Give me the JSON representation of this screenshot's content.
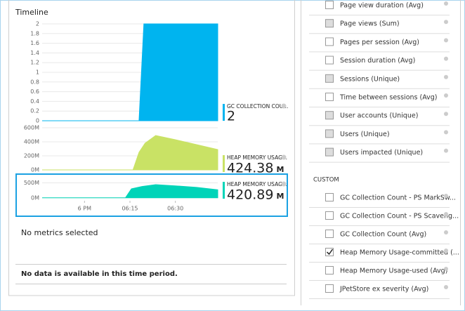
{
  "timeline": {
    "title": "Timeline",
    "empty_message": "No metrics selected",
    "no_data_message": "No data is available in this time period."
  },
  "chart_data": [
    {
      "type": "area",
      "series": [
        {
          "name": "GC COLLECTION COU...",
          "color": "#00b4ef",
          "values": [
            0,
            0,
            2,
            2
          ]
        }
      ],
      "x": [
        -14,
        18,
        19.6,
        44
      ],
      "xlim": [
        -14,
        44
      ],
      "ylim": [
        0,
        2
      ],
      "yticks": [
        0,
        0.2,
        0.4,
        0.6,
        0.8,
        1,
        1.2,
        1.4,
        1.6,
        1.8,
        2
      ],
      "grid": true,
      "current_value": 2
    },
    {
      "type": "area",
      "series": [
        {
          "name": "HEAP MEMORY USAG...",
          "color": "#c9e265",
          "values": [
            0,
            0,
            250,
            380,
            490,
            430,
            360,
            290
          ]
        }
      ],
      "x": [
        -14,
        16,
        18,
        20,
        23.5,
        30,
        37,
        44
      ],
      "xlim": [
        -14,
        44
      ],
      "ylim": [
        0,
        600
      ],
      "yticks": [
        {
          "value": 0,
          "label": "0M"
        },
        {
          "value": 200,
          "label": "200M"
        },
        {
          "value": 400,
          "label": "400M"
        },
        {
          "value": 600,
          "label": "600M"
        }
      ],
      "grid": true,
      "current_value": 424.38,
      "unit": "M"
    },
    {
      "type": "area",
      "series": [
        {
          "name": "HEAP MEMORY USAG...",
          "color": "#00d4b8",
          "values": [
            0,
            0,
            300,
            380,
            440,
            400,
            350,
            270
          ]
        }
      ],
      "x": [
        -14,
        13.5,
        15.5,
        19,
        23.5,
        30,
        37,
        44
      ],
      "xlim": [
        -14,
        44
      ],
      "ylim": [
        -100,
        700
      ],
      "yticks": [
        {
          "value": 0,
          "label": "0M"
        },
        {
          "value": 500,
          "label": "500M"
        }
      ],
      "xticks": [
        {
          "value": 0,
          "label": "6 PM"
        },
        {
          "value": 15,
          "label": "06:15"
        },
        {
          "value": 30,
          "label": "06:30"
        }
      ],
      "grid": true,
      "current_value": 420.89,
      "unit": "M",
      "selected": true
    }
  ],
  "metrics_panel": {
    "items": [
      {
        "label": "Page view duration (Avg)",
        "checked": false,
        "enabled": true
      },
      {
        "label": "Page views (Sum)",
        "checked": false,
        "enabled": false
      },
      {
        "label": "Pages per session (Avg)",
        "checked": false,
        "enabled": true
      },
      {
        "label": "Session duration (Avg)",
        "checked": false,
        "enabled": true
      },
      {
        "label": "Sessions (Unique)",
        "checked": false,
        "enabled": false
      },
      {
        "label": "Time between sessions (Avg)",
        "checked": false,
        "enabled": true
      },
      {
        "label": "User accounts (Unique)",
        "checked": false,
        "enabled": false
      },
      {
        "label": "Users (Unique)",
        "checked": false,
        "enabled": false
      },
      {
        "label": "Users impacted (Unique)",
        "checked": false,
        "enabled": false
      }
    ],
    "custom_heading": "CUSTOM",
    "custom_items": [
      {
        "label": "GC Collection Count - PS MarkSw...",
        "checked": false,
        "enabled": true
      },
      {
        "label": "GC Collection Count - PS Scaveng...",
        "checked": false,
        "enabled": true
      },
      {
        "label": "GC Collection Count (Avg)",
        "checked": false,
        "enabled": true
      },
      {
        "label": "Heap Memory Usage-committed (...",
        "checked": true,
        "enabled": true
      },
      {
        "label": "Heap Memory Usage-used (Avg)",
        "checked": false,
        "enabled": true
      },
      {
        "label": "JPetStore ex severity (Avg)",
        "checked": false,
        "enabled": true
      }
    ]
  }
}
